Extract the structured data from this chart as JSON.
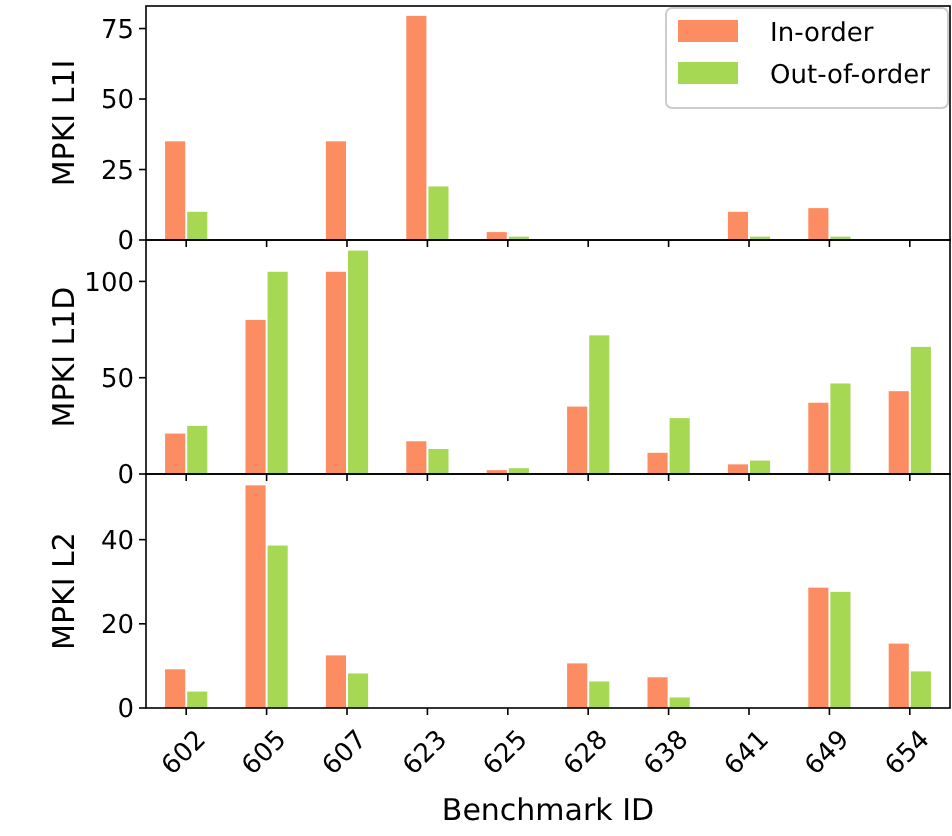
{
  "chart_data": [
    {
      "type": "bar",
      "ylabel": "MPKI L1I",
      "categories": [
        "602",
        "605",
        "607",
        "623",
        "625",
        "628",
        "638",
        "641",
        "649",
        "654"
      ],
      "ylim": [
        0,
        83
      ],
      "yticks": [
        0,
        25,
        50,
        75
      ],
      "tick_labels": "y",
      "legend": "top right",
      "series": [
        {
          "name": "In-order",
          "color": "#fc8d62",
          "values": [
            35,
            0,
            35,
            79.5,
            2.8,
            0,
            0,
            10,
            11.3,
            0
          ]
        },
        {
          "name": "Out-of-order",
          "color": "#a6d854",
          "values": [
            10,
            0,
            0,
            19,
            1.2,
            0,
            0,
            1.2,
            1.2,
            0
          ]
        }
      ]
    },
    {
      "type": "bar",
      "ylabel": "MPKI L1D",
      "categories": [
        "602",
        "605",
        "607",
        "623",
        "625",
        "628",
        "638",
        "641",
        "649",
        "654"
      ],
      "ylim": [
        0,
        121.5
      ],
      "yticks": [
        0,
        50,
        100
      ],
      "tick_labels": "y",
      "series": [
        {
          "color": "#fc8d62",
          "values": [
            21,
            80,
            105,
            17,
            2,
            35,
            11,
            5,
            37,
            43
          ]
        },
        {
          "color": "#a6d854",
          "values": [
            25,
            105,
            116,
            13,
            3,
            72,
            29,
            7,
            47,
            66
          ]
        }
      ]
    },
    {
      "type": "bar",
      "ylabel": "MPKI L2",
      "xlabel": "Benchmark ID",
      "categories": [
        "602",
        "605",
        "607",
        "623",
        "625",
        "628",
        "638",
        "641",
        "649",
        "654"
      ],
      "ylim": [
        0,
        55.6
      ],
      "yticks": [
        0,
        20,
        40
      ],
      "series": [
        {
          "color": "#fc8d62",
          "values": [
            9.2,
            52.9,
            12.5,
            0,
            0,
            10.6,
            7.3,
            0,
            28.6,
            15.3
          ]
        },
        {
          "color": "#a6d854",
          "values": [
            3.9,
            38.6,
            8.2,
            0,
            0,
            6.3,
            2.5,
            0,
            27.6,
            8.7
          ]
        }
      ]
    }
  ]
}
